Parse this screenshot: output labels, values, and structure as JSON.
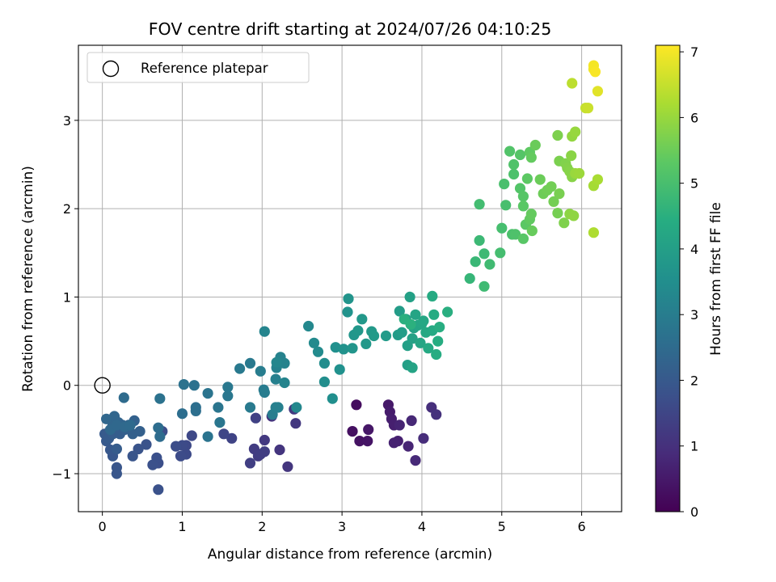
{
  "chart_data": {
    "type": "scatter",
    "title": "FOV centre drift starting at 2024/07/26 04:10:25",
    "xlabel": "Angular distance from reference (arcmin)",
    "ylabel": "Rotation from reference (arcmin)",
    "xlim": [
      -0.3,
      6.5
    ],
    "ylim": [
      -1.43,
      3.85
    ],
    "xticks": [
      0,
      1,
      2,
      3,
      4,
      5,
      6
    ],
    "yticks": [
      -1,
      0,
      1,
      2,
      3
    ],
    "grid": true,
    "colormap": "viridis",
    "colorbar": {
      "label": "Hours from first FF file",
      "range": [
        0,
        7.1
      ],
      "ticks": [
        0,
        1,
        2,
        3,
        4,
        5,
        6,
        7
      ]
    },
    "legend": {
      "placement": "upper-left",
      "entries": [
        {
          "label": "Reference platepar",
          "marker": "open-circle"
        }
      ]
    },
    "reference_point": {
      "x": 0,
      "y": 0,
      "label": "Reference platepar"
    },
    "points": [
      [
        3.18,
        -0.22,
        0.25
      ],
      [
        3.13,
        -0.52,
        0.3
      ],
      [
        3.22,
        -0.63,
        0.35
      ],
      [
        3.32,
        -0.63,
        0.4
      ],
      [
        3.33,
        -0.5,
        0.45
      ],
      [
        3.58,
        -0.22,
        0.5
      ],
      [
        3.6,
        -0.3,
        0.55
      ],
      [
        3.62,
        -0.38,
        0.6
      ],
      [
        3.65,
        -0.45,
        0.62
      ],
      [
        3.7,
        -0.63,
        0.65
      ],
      [
        3.65,
        -0.65,
        0.68
      ],
      [
        3.72,
        -0.45,
        0.72
      ],
      [
        3.83,
        -0.69,
        0.75
      ],
      [
        3.87,
        -0.4,
        0.8
      ],
      [
        3.92,
        -0.85,
        0.85
      ],
      [
        4.02,
        -0.6,
        0.9
      ],
      [
        4.12,
        -0.25,
        0.95
      ],
      [
        4.18,
        -0.33,
        1.0
      ],
      [
        2.12,
        -0.35,
        1.05
      ],
      [
        2.22,
        -0.73,
        1.1
      ],
      [
        2.32,
        -0.92,
        1.12
      ],
      [
        2.42,
        -0.43,
        1.15
      ],
      [
        2.4,
        -0.27,
        1.18
      ],
      [
        2.03,
        -0.62,
        1.2
      ],
      [
        1.95,
        -0.8,
        1.25
      ],
      [
        1.9,
        -0.72,
        1.28
      ],
      [
        1.98,
        -0.78,
        1.3
      ],
      [
        2.03,
        -0.75,
        1.33
      ],
      [
        1.85,
        -0.88,
        1.35
      ],
      [
        1.92,
        -0.37,
        1.4
      ],
      [
        1.62,
        -0.6,
        1.45
      ],
      [
        1.52,
        -0.55,
        1.5
      ],
      [
        1.12,
        -0.57,
        1.55
      ],
      [
        1.05,
        -0.68,
        1.58
      ],
      [
        1.05,
        -0.78,
        1.6
      ],
      [
        1.0,
        -0.68,
        1.62
      ],
      [
        0.98,
        -0.8,
        1.65
      ],
      [
        0.92,
        -0.69,
        1.68
      ],
      [
        0.75,
        -0.52,
        1.7
      ],
      [
        0.7,
        -0.88,
        1.72
      ],
      [
        0.68,
        -0.82,
        1.75
      ],
      [
        0.63,
        -0.9,
        1.78
      ],
      [
        0.7,
        -1.18,
        1.8
      ],
      [
        0.55,
        -0.67,
        1.82
      ],
      [
        0.45,
        -0.72,
        1.85
      ],
      [
        0.38,
        -0.8,
        1.88
      ],
      [
        0.18,
        -0.93,
        1.9
      ],
      [
        0.18,
        -1.0,
        1.92
      ],
      [
        0.13,
        -0.8,
        1.95
      ],
      [
        0.1,
        -0.73,
        1.98
      ],
      [
        0.05,
        -0.63,
        2.0
      ],
      [
        0.03,
        -0.55,
        2.02
      ],
      [
        0.08,
        -0.6,
        2.05
      ],
      [
        0.18,
        -0.72,
        2.08
      ],
      [
        0.13,
        -0.55,
        2.1
      ],
      [
        0.22,
        -0.55,
        2.12
      ],
      [
        0.28,
        -0.5,
        2.15
      ],
      [
        0.38,
        -0.55,
        2.18
      ],
      [
        0.47,
        -0.52,
        2.2
      ],
      [
        0.4,
        -0.4,
        2.22
      ],
      [
        0.33,
        -0.45,
        2.25
      ],
      [
        0.25,
        -0.45,
        2.28
      ],
      [
        0.2,
        -0.42,
        2.3
      ],
      [
        0.13,
        -0.45,
        2.32
      ],
      [
        0.15,
        -0.35,
        2.35
      ],
      [
        0.05,
        -0.38,
        2.38
      ],
      [
        0.1,
        -0.5,
        2.4
      ],
      [
        0.18,
        -0.45,
        2.42
      ],
      [
        0.28,
        -0.47,
        2.45
      ],
      [
        0.35,
        -0.45,
        2.48
      ],
      [
        0.27,
        -0.14,
        2.5
      ],
      [
        0.72,
        -0.58,
        2.52
      ],
      [
        0.7,
        -0.48,
        2.55
      ],
      [
        1.0,
        -0.32,
        2.58
      ],
      [
        1.17,
        -0.29,
        2.6
      ],
      [
        1.17,
        -0.25,
        2.62
      ],
      [
        1.15,
        0.0,
        2.65
      ],
      [
        1.02,
        0.01,
        2.68
      ],
      [
        0.72,
        -0.15,
        2.7
      ],
      [
        1.32,
        -0.58,
        2.72
      ],
      [
        1.32,
        -0.09,
        2.75
      ],
      [
        1.45,
        -0.25,
        2.78
      ],
      [
        1.47,
        -0.42,
        2.8
      ],
      [
        1.57,
        -0.12,
        2.82
      ],
      [
        1.57,
        -0.02,
        2.85
      ],
      [
        1.72,
        0.19,
        2.88
      ],
      [
        1.85,
        0.25,
        2.9
      ],
      [
        1.85,
        -0.25,
        2.92
      ],
      [
        2.02,
        -0.05,
        2.95
      ],
      [
        2.03,
        -0.08,
        2.98
      ],
      [
        1.98,
        0.16,
        3.0
      ],
      [
        2.13,
        -0.33,
        3.02
      ],
      [
        2.17,
        -0.25,
        3.05
      ],
      [
        2.2,
        -0.25,
        3.08
      ],
      [
        2.17,
        0.07,
        3.1
      ],
      [
        2.18,
        0.2,
        3.12
      ],
      [
        2.23,
        0.32,
        3.15
      ],
      [
        2.28,
        0.25,
        3.18
      ],
      [
        2.28,
        0.03,
        3.2
      ],
      [
        2.03,
        0.61,
        3.22
      ],
      [
        2.18,
        0.26,
        3.25
      ],
      [
        2.43,
        -0.25,
        3.28
      ],
      [
        2.58,
        0.67,
        3.32
      ],
      [
        2.65,
        0.48,
        3.38
      ],
      [
        2.7,
        0.38,
        3.42
      ],
      [
        2.78,
        0.25,
        3.45
      ],
      [
        2.78,
        0.04,
        3.48
      ],
      [
        2.88,
        -0.15,
        3.52
      ],
      [
        2.92,
        0.43,
        3.55
      ],
      [
        2.97,
        0.18,
        3.58
      ],
      [
        3.02,
        0.41,
        3.62
      ],
      [
        3.07,
        0.83,
        3.65
      ],
      [
        3.08,
        0.98,
        3.68
      ],
      [
        3.13,
        0.42,
        3.7
      ],
      [
        3.15,
        0.57,
        3.72
      ],
      [
        3.2,
        0.62,
        3.75
      ],
      [
        3.25,
        0.75,
        3.78
      ],
      [
        3.3,
        0.47,
        3.8
      ],
      [
        3.37,
        0.61,
        3.82
      ],
      [
        3.4,
        0.56,
        3.85
      ],
      [
        3.55,
        0.56,
        3.88
      ],
      [
        3.7,
        0.57,
        3.9
      ],
      [
        3.72,
        0.84,
        3.92
      ],
      [
        3.75,
        0.6,
        3.95
      ],
      [
        3.8,
        0.75,
        3.98
      ],
      [
        3.82,
        0.45,
        4.0
      ],
      [
        3.82,
        0.23,
        4.02
      ],
      [
        3.85,
        1.0,
        4.05
      ],
      [
        3.88,
        0.53,
        4.08
      ],
      [
        3.9,
        0.65,
        4.1
      ],
      [
        3.88,
        0.2,
        4.12
      ],
      [
        3.92,
        0.8,
        4.15
      ],
      [
        3.95,
        0.68,
        4.18
      ],
      [
        3.98,
        0.48,
        4.2
      ],
      [
        4.0,
        0.7,
        4.22
      ],
      [
        4.02,
        0.73,
        4.25
      ],
      [
        4.05,
        0.6,
        4.28
      ],
      [
        4.08,
        0.42,
        4.3
      ],
      [
        4.13,
        0.62,
        4.32
      ],
      [
        4.13,
        1.01,
        4.35
      ],
      [
        4.15,
        0.8,
        4.38
      ],
      [
        4.18,
        0.35,
        4.4
      ],
      [
        4.2,
        0.5,
        4.42
      ],
      [
        4.22,
        0.66,
        4.45
      ],
      [
        4.32,
        0.83,
        4.48
      ],
      [
        3.78,
        0.75,
        4.5
      ],
      [
        3.86,
        0.69,
        4.52
      ],
      [
        4.6,
        1.21,
        4.7
      ],
      [
        4.67,
        1.4,
        4.75
      ],
      [
        4.72,
        1.64,
        4.8
      ],
      [
        4.78,
        1.49,
        4.82
      ],
      [
        4.78,
        1.12,
        4.85
      ],
      [
        4.85,
        1.37,
        4.88
      ],
      [
        4.72,
        2.05,
        4.92
      ],
      [
        4.98,
        1.5,
        4.95
      ],
      [
        5.0,
        1.78,
        4.98
      ],
      [
        5.05,
        2.04,
        5.0
      ],
      [
        5.03,
        2.28,
        5.02
      ],
      [
        5.13,
        1.71,
        5.05
      ],
      [
        5.15,
        2.39,
        5.08
      ],
      [
        5.17,
        1.71,
        5.1
      ],
      [
        5.15,
        2.5,
        5.12
      ],
      [
        5.1,
        2.65,
        5.15
      ],
      [
        5.23,
        2.23,
        5.18
      ],
      [
        5.23,
        2.61,
        5.2
      ],
      [
        5.27,
        2.14,
        5.22
      ],
      [
        5.27,
        1.66,
        5.25
      ],
      [
        5.27,
        2.03,
        5.28
      ],
      [
        5.3,
        1.82,
        5.3
      ],
      [
        5.32,
        2.34,
        5.32
      ],
      [
        5.35,
        2.64,
        5.35
      ],
      [
        5.35,
        1.88,
        5.38
      ],
      [
        5.37,
        2.58,
        5.4
      ],
      [
        5.37,
        1.94,
        5.42
      ],
      [
        5.38,
        1.75,
        5.45
      ],
      [
        5.42,
        2.72,
        5.48
      ],
      [
        5.48,
        2.33,
        5.5
      ],
      [
        5.52,
        2.17,
        5.52
      ],
      [
        5.57,
        2.21,
        5.55
      ],
      [
        5.62,
        2.25,
        5.58
      ],
      [
        5.65,
        2.08,
        5.6
      ],
      [
        5.7,
        1.95,
        5.62
      ],
      [
        5.72,
        2.17,
        5.65
      ],
      [
        5.72,
        2.54,
        5.68
      ],
      [
        5.7,
        2.83,
        5.7
      ],
      [
        5.78,
        1.84,
        5.72
      ],
      [
        5.8,
        2.51,
        5.75
      ],
      [
        5.82,
        2.46,
        5.78
      ],
      [
        5.85,
        2.42,
        5.8
      ],
      [
        5.88,
        2.36,
        5.82
      ],
      [
        5.87,
        2.6,
        5.85
      ],
      [
        5.85,
        1.94,
        5.88
      ],
      [
        5.9,
        1.92,
        5.9
      ],
      [
        5.88,
        2.82,
        5.95
      ],
      [
        5.92,
        2.87,
        6.0
      ],
      [
        5.92,
        2.4,
        6.02
      ],
      [
        5.97,
        2.4,
        6.05
      ],
      [
        6.15,
        2.26,
        6.15
      ],
      [
        6.2,
        2.33,
        6.2
      ],
      [
        6.15,
        1.73,
        6.25
      ],
      [
        5.88,
        3.42,
        6.4
      ],
      [
        6.05,
        3.14,
        6.5
      ],
      [
        6.08,
        3.14,
        6.55
      ],
      [
        6.2,
        3.33,
        6.8
      ],
      [
        6.15,
        3.58,
        6.95
      ],
      [
        6.15,
        3.62,
        7.0
      ],
      [
        6.17,
        3.55,
        7.05
      ]
    ]
  }
}
